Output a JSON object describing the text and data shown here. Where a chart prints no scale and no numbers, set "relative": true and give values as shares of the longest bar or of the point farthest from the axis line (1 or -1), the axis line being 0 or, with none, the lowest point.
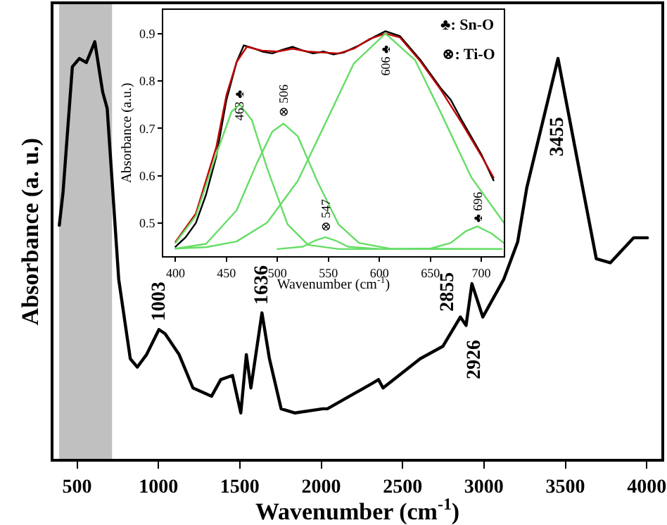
{
  "chart_data": [
    {
      "type": "line",
      "xlabel": "Wavenumber (cm$^{-1}$)",
      "ylabel": "Absorbance (a. u.)",
      "relative": true,
      "xlim": [
        355,
        4090
      ],
      "xticks": [
        500,
        1000,
        1500,
        2000,
        2500,
        3000,
        3500,
        4000
      ],
      "tick_labels": "x",
      "bands": [
        {
          "axis": "x",
          "from": 390,
          "to": 715,
          "color": "#c0c0c0"
        }
      ],
      "annotations": [
        {
          "text": "1003",
          "x": 1003,
          "y": 0.31
        },
        {
          "text": "1636",
          "x": 1636,
          "y": 0.35
        },
        {
          "text": "2855",
          "x": 2855,
          "y": 0.34
        },
        {
          "text": "2926",
          "x": 2926,
          "y": 0.32
        },
        {
          "text": "3455",
          "x": 3455,
          "y": 0.96
        }
      ],
      "series": [
        {
          "color": "#000000",
          "x": [
            391,
            414,
            471,
            514,
            557,
            609,
            657,
            685,
            756,
            827,
            870,
            927,
            1003,
            1041,
            1127,
            1212,
            1326,
            1383,
            1455,
            1506,
            1540,
            1568,
            1636,
            1682,
            1754,
            1839,
            2010,
            2038,
            2309,
            2352,
            2380,
            2608,
            2748,
            2855,
            2890,
            2926,
            2993,
            3121,
            3207,
            3263,
            3455,
            3577,
            3690,
            3776,
            3919,
            4004
          ],
          "values": [
            0.56,
            0.64,
            0.94,
            0.96,
            0.95,
            1.0,
            0.88,
            0.84,
            0.43,
            0.24,
            0.22,
            0.25,
            0.31,
            0.3,
            0.25,
            0.17,
            0.15,
            0.19,
            0.2,
            0.11,
            0.25,
            0.17,
            0.35,
            0.24,
            0.12,
            0.11,
            0.12,
            0.12,
            0.18,
            0.19,
            0.17,
            0.24,
            0.27,
            0.34,
            0.32,
            0.42,
            0.34,
            0.43,
            0.52,
            0.65,
            0.96,
            0.71,
            0.48,
            0.47,
            0.53,
            0.53
          ]
        }
      ]
    },
    {
      "type": "line",
      "xlabel": "Wavenumber (cm$^{-1}$)",
      "ylabel": "Absorbance (a.u.)",
      "xlim": [
        388,
        722
      ],
      "ylim": [
        0.43,
        0.95
      ],
      "xticks": [
        400,
        450,
        500,
        550,
        600,
        650,
        700
      ],
      "yticks": [
        0.5,
        0.6,
        0.7,
        0.8,
        0.9
      ],
      "annotations": [
        {
          "text": "463 ♣",
          "x": 463,
          "y": 0.75
        },
        {
          "text": "⊗ 506",
          "x": 506,
          "y": 0.71
        },
        {
          "text": "⊗ 547",
          "x": 547,
          "y": 0.47
        },
        {
          "text": "606 ♣",
          "x": 606,
          "y": 0.9
        },
        {
          "text": "♣ 696",
          "x": 696,
          "y": 0.49
        },
        "♣: Sn-O",
        "⊗: Ti-O"
      ],
      "series": [
        {
          "color": "#000000",
          "x": [
            400,
            410,
            420,
            430,
            440,
            450,
            460,
            467,
            475,
            485,
            495,
            505,
            515,
            525,
            535,
            545,
            555,
            565,
            580,
            595,
            606,
            620,
            640,
            660,
            670,
            680,
            700,
            712
          ],
          "values": [
            0.45,
            0.47,
            0.5,
            0.56,
            0.64,
            0.76,
            0.84,
            0.875,
            0.87,
            0.862,
            0.858,
            0.866,
            0.872,
            0.864,
            0.858,
            0.862,
            0.856,
            0.86,
            0.875,
            0.893,
            0.905,
            0.895,
            0.845,
            0.785,
            0.76,
            0.72,
            0.645,
            0.59
          ]
        },
        {
          "color": "#c00000",
          "x": [
            400,
            420,
            440,
            450,
            460,
            470,
            485,
            500,
            515,
            530,
            545,
            560,
            575,
            590,
            606,
            620,
            640,
            660,
            680,
            700,
            712
          ],
          "values": [
            0.46,
            0.52,
            0.66,
            0.77,
            0.84,
            0.872,
            0.864,
            0.862,
            0.868,
            0.862,
            0.86,
            0.858,
            0.868,
            0.888,
            0.9,
            0.892,
            0.842,
            0.782,
            0.714,
            0.642,
            0.596
          ]
        },
        {
          "color": "#66dd66",
          "x": [
            400,
            420,
            440,
            455,
            463,
            475,
            490,
            510,
            530,
            560,
            720
          ],
          "values": [
            0.458,
            0.515,
            0.645,
            0.735,
            0.75,
            0.717,
            0.615,
            0.497,
            0.454,
            0.445,
            0.445
          ]
        },
        {
          "color": "#66dd66",
          "x": [
            400,
            430,
            460,
            480,
            495,
            506,
            520,
            540,
            560,
            580,
            610,
            720
          ],
          "values": [
            0.446,
            0.456,
            0.527,
            0.627,
            0.693,
            0.71,
            0.683,
            0.584,
            0.497,
            0.458,
            0.446,
            0.445
          ]
        },
        {
          "color": "#66dd66",
          "x": [
            500,
            525,
            537,
            547,
            557,
            569,
            600
          ],
          "values": [
            0.445,
            0.45,
            0.463,
            0.47,
            0.463,
            0.45,
            0.445
          ]
        },
        {
          "color": "#66dd66",
          "x": [
            400,
            430,
            460,
            490,
            520,
            550,
            575,
            606,
            635,
            660,
            690,
            722
          ],
          "values": [
            0.446,
            0.449,
            0.461,
            0.501,
            0.589,
            0.724,
            0.837,
            0.9,
            0.844,
            0.734,
            0.597,
            0.501
          ]
        },
        {
          "color": "#66dd66",
          "x": [
            620,
            650,
            670,
            685,
            696,
            710,
            722
          ],
          "values": [
            0.445,
            0.446,
            0.458,
            0.483,
            0.493,
            0.478,
            0.458
          ]
        }
      ]
    }
  ]
}
